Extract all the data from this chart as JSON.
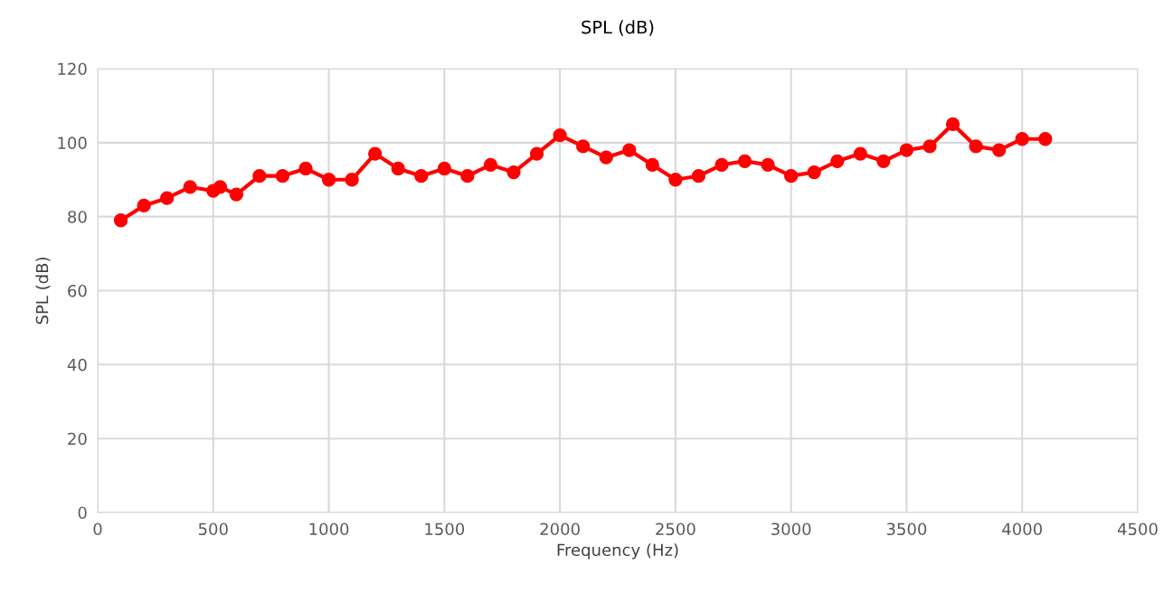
{
  "chart_data": {
    "type": "line",
    "title": "SPL (dB)",
    "xlabel": "Frequency (Hz)",
    "ylabel": "SPL (dB)",
    "x": [
      100,
      200,
      300,
      400,
      500,
      530,
      600,
      700,
      800,
      900,
      1000,
      1100,
      1200,
      1300,
      1400,
      1500,
      1600,
      1700,
      1800,
      1900,
      2000,
      2100,
      2200,
      2300,
      2400,
      2500,
      2600,
      2700,
      2800,
      2900,
      3000,
      3100,
      3200,
      3300,
      3400,
      3500,
      3600,
      3700,
      3800,
      3900,
      4000,
      4100
    ],
    "series": [
      {
        "color": "#ff0000",
        "values": [
          79,
          83,
          85,
          88,
          87,
          88,
          86,
          91,
          91,
          93,
          90,
          90,
          97,
          93,
          91,
          93,
          91,
          94,
          92,
          97,
          102,
          99,
          96,
          98,
          94,
          90,
          91,
          94,
          95,
          94,
          91,
          92,
          95,
          97,
          95,
          98,
          99,
          105,
          99,
          98,
          101,
          101
        ]
      }
    ],
    "xlim": [
      0,
      4500
    ],
    "xticks": [
      0,
      500,
      1000,
      1500,
      2000,
      2500,
      3000,
      3500,
      4000,
      4500
    ],
    "ylim": [
      0,
      120
    ],
    "yticks": [
      0,
      20,
      40,
      60,
      80,
      100,
      120
    ],
    "grid": true,
    "marker": "circle",
    "line_style": "solid",
    "legend": false
  }
}
